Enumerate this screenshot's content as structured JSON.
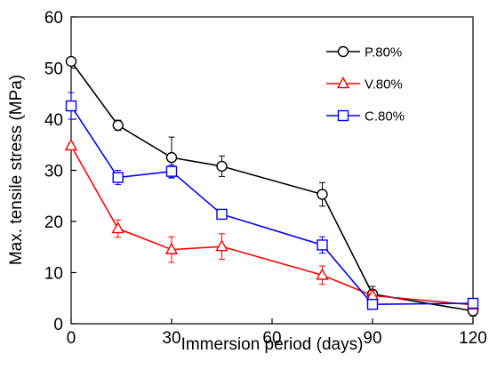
{
  "chart_data": {
    "type": "line",
    "xlabel": "Immersion period (days)",
    "ylabel": "Max. tensile stress (MPa)",
    "xlim": [
      0,
      120
    ],
    "ylim": [
      0,
      60
    ],
    "xticks": [
      "0",
      "30",
      "60",
      "90",
      "120"
    ],
    "yticks": [
      "0",
      "10",
      "20",
      "30",
      "40",
      "50",
      "60"
    ],
    "grid": false,
    "legend_position": "top-right",
    "series": [
      {
        "name": "P.80%",
        "color": "#000000",
        "marker": "circle",
        "x": [
          0,
          14,
          30,
          45,
          75,
          90,
          120
        ],
        "y": [
          51.3,
          38.8,
          32.5,
          30.8,
          25.3,
          5.8,
          2.5
        ],
        "err": [
          0.5,
          1.0,
          4.0,
          2.0,
          2.3,
          1.5,
          1.0
        ]
      },
      {
        "name": "V.80%",
        "color": "#ff0000",
        "marker": "triangle",
        "x": [
          0,
          14,
          30,
          45,
          75,
          90,
          120
        ],
        "y": [
          34.8,
          18.6,
          14.5,
          15.1,
          9.5,
          5.5,
          3.7
        ],
        "err": [
          0.5,
          1.7,
          2.5,
          2.5,
          1.8,
          1.0,
          0.8
        ]
      },
      {
        "name": "C.80%",
        "color": "#0000ff",
        "marker": "square",
        "x": [
          0,
          14,
          30,
          45,
          75,
          90,
          120
        ],
        "y": [
          42.6,
          28.6,
          29.8,
          21.4,
          15.4,
          3.8,
          4.0
        ],
        "err": [
          2.6,
          1.4,
          1.2,
          0.6,
          1.6,
          0.6,
          0.8
        ]
      }
    ]
  }
}
